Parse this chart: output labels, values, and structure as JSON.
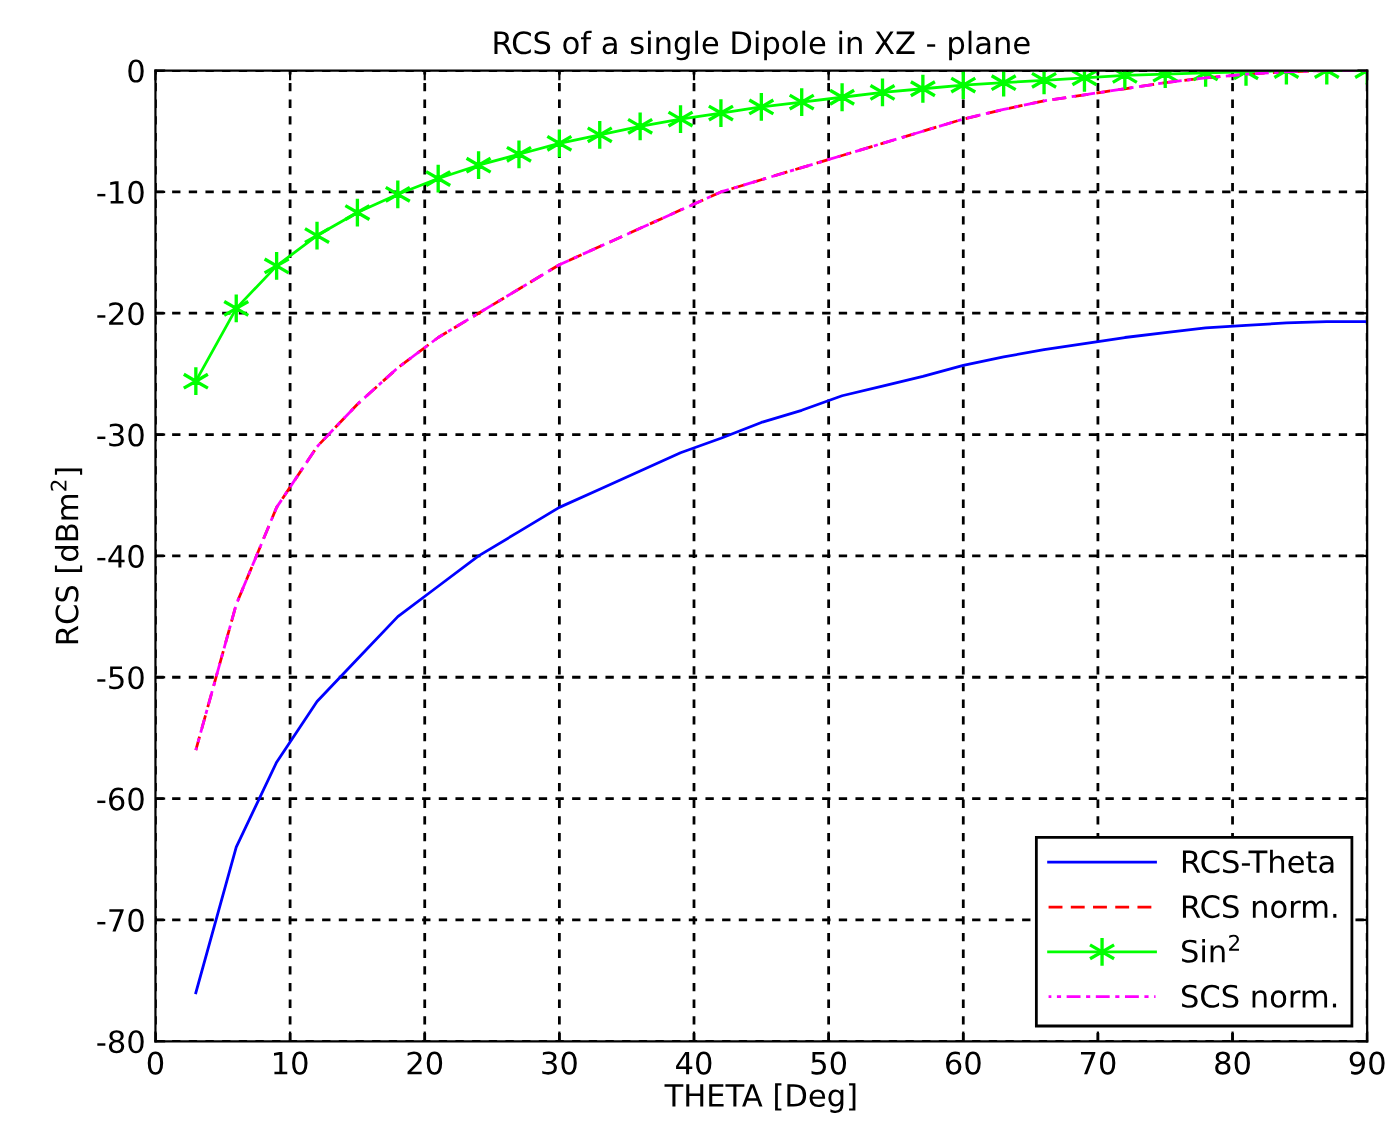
{
  "chart_data": {
    "type": "line",
    "title": "RCS of a single Dipole in XZ - plane",
    "xlabel": "THETA [Deg]",
    "ylabel": "RCS [dBm$^{2}$]",
    "x": [
      3,
      6,
      9,
      12,
      15,
      18,
      21,
      24,
      27,
      30,
      33,
      36,
      39,
      42,
      45,
      48,
      51,
      54,
      57,
      60,
      63,
      66,
      69,
      72,
      75,
      78,
      81,
      84,
      87,
      90
    ],
    "series": [
      {
        "name": "RCS-Theta",
        "color": "#0000ff",
        "line_style": "solid",
        "marker": "none",
        "values": [
          -76,
          -64,
          -57,
          -52,
          -48.5,
          -45,
          -42.5,
          -40,
          -38,
          -36,
          -34.5,
          -33,
          -31.5,
          -30.3,
          -29,
          -28,
          -26.8,
          -26,
          -25.2,
          -24.3,
          -23.6,
          -23,
          -22.5,
          -22,
          -21.6,
          -21.2,
          -21,
          -20.8,
          -20.7,
          -20.7
        ]
      },
      {
        "name": "RCS norm.",
        "color": "#ff0000",
        "line_style": "dashed",
        "marker": "none",
        "values": [
          -56,
          -44,
          -36,
          -31,
          -27.5,
          -24.5,
          -22,
          -20,
          -18,
          -16,
          -14.5,
          -13,
          -11.5,
          -10,
          -9,
          -8,
          -7,
          -6,
          -5,
          -4,
          -3.2,
          -2.5,
          -2,
          -1.5,
          -1,
          -0.6,
          -0.3,
          -0.1,
          0,
          0
        ]
      },
      {
        "name": "Sin$^{2}$",
        "color": "#00ff00",
        "line_style": "solid",
        "marker": "cross",
        "values": [
          -25.6,
          -19.6,
          -16.1,
          -13.6,
          -11.7,
          -10.2,
          -8.9,
          -7.8,
          -6.9,
          -6,
          -5.3,
          -4.6,
          -4,
          -3.5,
          -3,
          -2.6,
          -2.2,
          -1.8,
          -1.5,
          -1.2,
          -1,
          -0.8,
          -0.6,
          -0.4,
          -0.3,
          -0.2,
          -0.1,
          0,
          0,
          0
        ]
      },
      {
        "name": "SCS norm.",
        "color": "#ff00ff",
        "line_style": "dashdot",
        "marker": "none",
        "values": [
          -56,
          -44,
          -36,
          -31,
          -27.5,
          -24.5,
          -22,
          -20,
          -18,
          -16,
          -14.5,
          -13,
          -11.5,
          -10,
          -9,
          -8,
          -7,
          -6,
          -5,
          -4,
          -3.2,
          -2.5,
          -2,
          -1.5,
          -1,
          -0.6,
          -0.3,
          -0.1,
          0,
          0
        ]
      }
    ],
    "xlim": [
      0,
      90
    ],
    "xticks": [
      0,
      10,
      20,
      30,
      40,
      50,
      60,
      70,
      80,
      90
    ],
    "ylim": [
      -80,
      0
    ],
    "yticks": [
      -80,
      -70,
      -60,
      -50,
      -40,
      -30,
      -20,
      -10,
      0
    ],
    "grid": true,
    "legend": "bottom right"
  }
}
